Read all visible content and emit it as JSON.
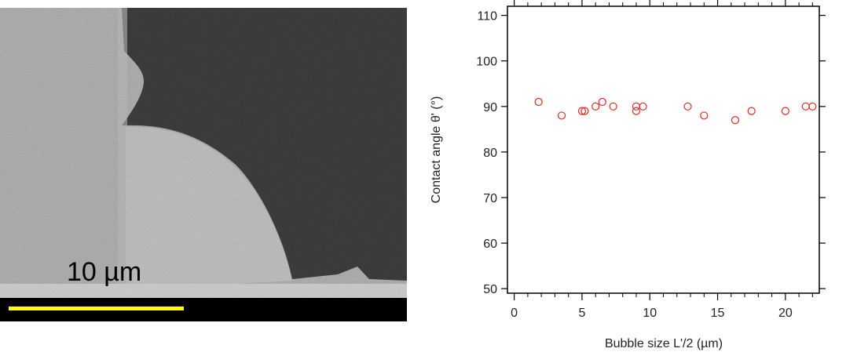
{
  "micrograph": {
    "scale_bar_label": "10 µm",
    "scale_bar_color": "#ffff00"
  },
  "chart_data": {
    "type": "scatter",
    "xlabel": "Bubble size L'/2 (µm)",
    "ylabel": "Contact angle θ' (°)",
    "xlim": [
      -0.5,
      22.5
    ],
    "ylim": [
      49,
      112
    ],
    "xticks": [
      0,
      5,
      10,
      15,
      20
    ],
    "yticks": [
      50,
      60,
      70,
      80,
      90,
      100,
      110
    ],
    "grid": false,
    "marker": "open-circle",
    "marker_color": "#e0281e",
    "series": [
      {
        "x": [
          1.8,
          3.5,
          5.0,
          5.2,
          6.0,
          6.5,
          7.3,
          9.0,
          9.0,
          9.5,
          12.8,
          14.0,
          16.3,
          17.5,
          20.0,
          21.5,
          22.0
        ],
        "y": [
          91,
          88,
          89,
          89,
          90,
          91,
          90,
          90,
          89,
          90,
          90,
          88,
          87,
          89,
          89,
          90,
          90
        ]
      }
    ]
  }
}
